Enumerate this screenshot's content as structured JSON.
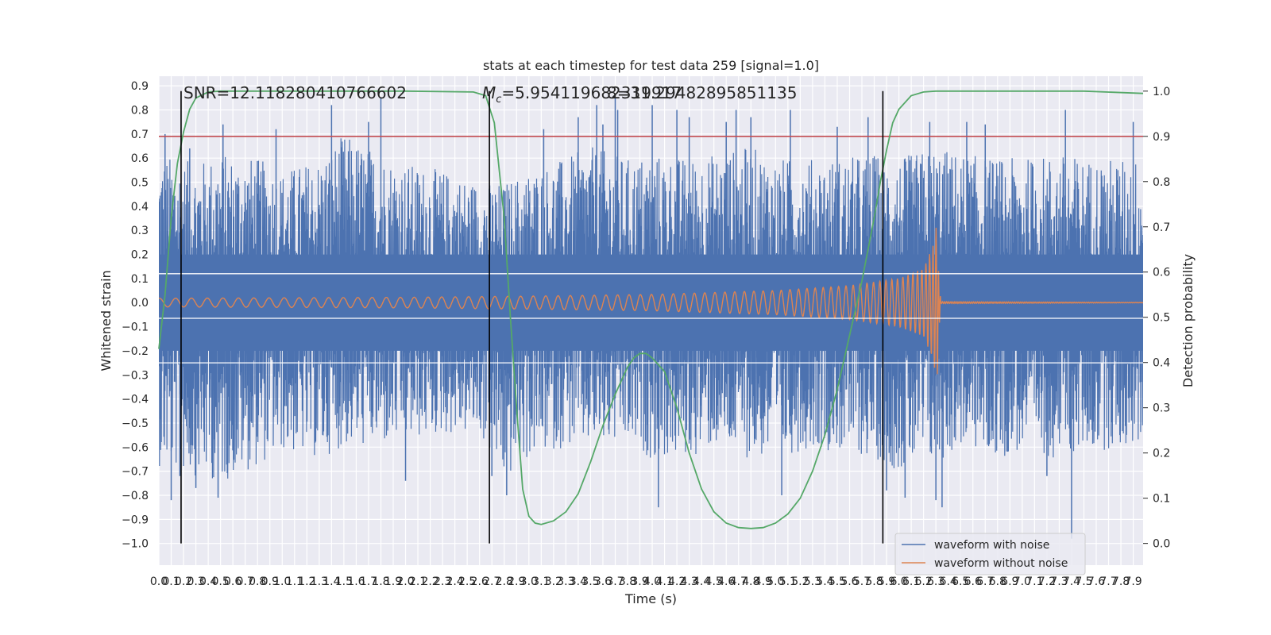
{
  "chart_data": {
    "type": "line",
    "title": "stats at each timestep for test data 259 [signal=1.0]",
    "xlabel": "Time (s)",
    "ylabel": "Whitened strain",
    "y2label": "Detection probability",
    "xlim": [
      0.0,
      7.98
    ],
    "ylim": [
      -1.09,
      0.94
    ],
    "y2lim": [
      -0.048,
      1.033
    ],
    "x_ticks": [
      "0.0",
      "0.1",
      "0.2",
      "0.3",
      "0.4",
      "0.5",
      "0.6",
      "0.7",
      "0.8",
      "0.9",
      "1.0",
      "1.1",
      "1.2",
      "1.3",
      "1.4",
      "1.5",
      "1.6",
      "1.7",
      "1.8",
      "1.9",
      "2.0",
      "2.1",
      "2.2",
      "2.3",
      "2.4",
      "2.5",
      "2.6",
      "2.7",
      "2.8",
      "2.9",
      "3.0",
      "3.1",
      "3.2",
      "3.3",
      "3.4",
      "3.5",
      "3.6",
      "3.7",
      "3.8",
      "3.9",
      "4.0",
      "4.1",
      "4.2",
      "4.3",
      "4.4",
      "4.5",
      "4.6",
      "4.7",
      "4.8",
      "4.9",
      "5.0",
      "5.1",
      "5.2",
      "5.3",
      "5.4",
      "5.5",
      "5.6",
      "5.7",
      "5.8",
      "5.9",
      "6.0",
      "6.1",
      "6.2",
      "6.3",
      "6.4",
      "6.5",
      "6.6",
      "6.7",
      "6.8",
      "6.9",
      "7.0",
      "7.1",
      "7.2",
      "7.3",
      "7.4",
      "7.5",
      "7.6",
      "7.7",
      "7.8",
      "7.9"
    ],
    "y_ticks": [
      "−1.0",
      "−0.9",
      "−0.8",
      "−0.7",
      "−0.6",
      "−0.5",
      "−0.4",
      "−0.3",
      "−0.2",
      "−0.1",
      "0.0",
      "0.1",
      "0.2",
      "0.3",
      "0.4",
      "0.5",
      "0.6",
      "0.7",
      "0.8",
      "0.9"
    ],
    "y2_ticks": [
      "0.0",
      "0.1",
      "0.2",
      "0.3",
      "0.4",
      "0.5",
      "0.6",
      "0.7",
      "0.8",
      "0.9",
      "1.0"
    ],
    "annotations": {
      "snr": "SNR=12.118280410766602",
      "mc_symbol": "M",
      "mc_sub": "c",
      "mc_value": "=5.954119682319917",
      "overlap_text": "8=31.29482895851135"
    },
    "threshold": {
      "value": 0.9,
      "axis": "right"
    },
    "vlines_x": [
      0.18,
      2.68,
      5.87
    ],
    "legend_position": "lower right",
    "grid": true,
    "series": [
      {
        "name": "waveform with noise",
        "kind": "noise",
        "color": "#4c72b0",
        "envelope": [
          [
            0.0,
            0.62,
            -0.68
          ],
          [
            0.3,
            0.58,
            -0.72
          ],
          [
            0.5,
            0.62,
            -0.75
          ],
          [
            0.8,
            0.6,
            -0.68
          ],
          [
            1.0,
            0.55,
            -0.62
          ],
          [
            1.3,
            0.6,
            -0.65
          ],
          [
            1.5,
            0.7,
            -0.6
          ],
          [
            1.8,
            0.62,
            -0.6
          ],
          [
            2.0,
            0.58,
            -0.58
          ],
          [
            2.3,
            0.55,
            -0.55
          ],
          [
            2.6,
            0.5,
            -0.55
          ],
          [
            2.8,
            0.5,
            -0.75
          ],
          [
            3.0,
            0.55,
            -0.65
          ],
          [
            3.3,
            0.6,
            -0.6
          ],
          [
            3.5,
            0.65,
            -0.6
          ],
          [
            3.8,
            0.6,
            -0.6
          ],
          [
            4.0,
            0.62,
            -0.65
          ],
          [
            4.3,
            0.6,
            -0.65
          ],
          [
            4.5,
            0.62,
            -0.6
          ],
          [
            4.8,
            0.65,
            -0.65
          ],
          [
            5.0,
            0.6,
            -0.65
          ],
          [
            5.3,
            0.6,
            -0.6
          ],
          [
            5.5,
            0.6,
            -0.62
          ],
          [
            5.8,
            0.62,
            -0.65
          ],
          [
            6.0,
            0.6,
            -0.7
          ],
          [
            6.3,
            0.65,
            -0.68
          ],
          [
            6.5,
            0.62,
            -0.6
          ],
          [
            6.8,
            0.6,
            -0.65
          ],
          [
            7.0,
            0.6,
            -0.62
          ],
          [
            7.3,
            0.62,
            -0.65
          ],
          [
            7.5,
            0.6,
            -0.62
          ],
          [
            7.98,
            0.6,
            -0.6
          ]
        ],
        "spikes": [
          [
            0.05,
            0.7
          ],
          [
            0.1,
            -0.82
          ],
          [
            0.17,
            -0.72
          ],
          [
            0.25,
            0.64
          ],
          [
            0.3,
            -0.77
          ],
          [
            0.48,
            -0.81
          ],
          [
            0.52,
            0.74
          ],
          [
            0.95,
            0.72
          ],
          [
            1.4,
            0.82
          ],
          [
            1.7,
            0.75
          ],
          [
            1.8,
            0.85
          ],
          [
            2.0,
            -0.74
          ],
          [
            2.7,
            -0.72
          ],
          [
            2.82,
            -0.8
          ],
          [
            3.12,
            0.72
          ],
          [
            3.4,
            0.77
          ],
          [
            3.55,
            0.82
          ],
          [
            3.6,
            0.74
          ],
          [
            3.7,
            0.85
          ],
          [
            3.72,
            0.8
          ],
          [
            4.0,
            0.82
          ],
          [
            4.05,
            -0.85
          ],
          [
            4.2,
            0.8
          ],
          [
            4.3,
            0.77
          ],
          [
            4.6,
            0.75
          ],
          [
            4.68,
            0.8
          ],
          [
            4.8,
            0.77
          ],
          [
            5.05,
            -0.8
          ],
          [
            5.12,
            0.8
          ],
          [
            5.5,
            0.73
          ],
          [
            5.75,
            0.77
          ],
          [
            5.9,
            -0.78
          ],
          [
            6.05,
            -0.81
          ],
          [
            6.25,
            0.75
          ],
          [
            6.3,
            -0.82
          ],
          [
            6.35,
            -0.85
          ],
          [
            6.55,
            0.75
          ],
          [
            6.7,
            0.74
          ],
          [
            7.2,
            -0.72
          ],
          [
            7.35,
            0.8
          ],
          [
            7.4,
            -0.98
          ],
          [
            7.9,
            0.75
          ]
        ]
      },
      {
        "name": "waveform without noise",
        "kind": "chirp",
        "color": "#dd8452",
        "amp_points": [
          [
            0.0,
            0.018
          ],
          [
            1.0,
            0.02
          ],
          [
            2.0,
            0.022
          ],
          [
            3.0,
            0.027
          ],
          [
            4.0,
            0.034
          ],
          [
            5.0,
            0.05
          ],
          [
            5.6,
            0.07
          ],
          [
            6.0,
            0.1
          ],
          [
            6.2,
            0.14
          ],
          [
            6.28,
            0.24
          ],
          [
            6.31,
            0.34
          ],
          [
            6.32,
            0.15
          ],
          [
            6.34,
            0.004
          ],
          [
            7.98,
            0.001
          ]
        ],
        "merger_x": 6.32
      },
      {
        "name": "detection probability",
        "color": "#55a868",
        "axis": "right",
        "x": [
          0.0,
          0.05,
          0.1,
          0.15,
          0.2,
          0.25,
          0.3,
          0.4,
          0.5,
          1.0,
          2.0,
          2.55,
          2.65,
          2.72,
          2.8,
          2.85,
          2.9,
          2.95,
          3.0,
          3.05,
          3.1,
          3.2,
          3.3,
          3.4,
          3.5,
          3.6,
          3.7,
          3.8,
          3.85,
          3.9,
          3.95,
          4.0,
          4.1,
          4.2,
          4.3,
          4.4,
          4.5,
          4.6,
          4.7,
          4.8,
          4.9,
          5.0,
          5.1,
          5.2,
          5.3,
          5.4,
          5.5,
          5.6,
          5.7,
          5.8,
          5.85,
          5.9,
          5.95,
          6.0,
          6.1,
          6.2,
          6.3,
          7.5,
          7.98
        ],
        "y": [
          0.43,
          0.55,
          0.72,
          0.84,
          0.91,
          0.96,
          0.985,
          0.998,
          1.0,
          1.0,
          1.0,
          0.998,
          0.99,
          0.93,
          0.72,
          0.5,
          0.3,
          0.12,
          0.06,
          0.045,
          0.042,
          0.05,
          0.07,
          0.11,
          0.18,
          0.26,
          0.33,
          0.39,
          0.41,
          0.42,
          0.42,
          0.41,
          0.38,
          0.3,
          0.2,
          0.12,
          0.07,
          0.045,
          0.035,
          0.033,
          0.035,
          0.045,
          0.065,
          0.1,
          0.16,
          0.24,
          0.34,
          0.46,
          0.58,
          0.72,
          0.8,
          0.87,
          0.93,
          0.96,
          0.99,
          0.998,
          1.0,
          1.0,
          0.995
        ]
      }
    ]
  }
}
